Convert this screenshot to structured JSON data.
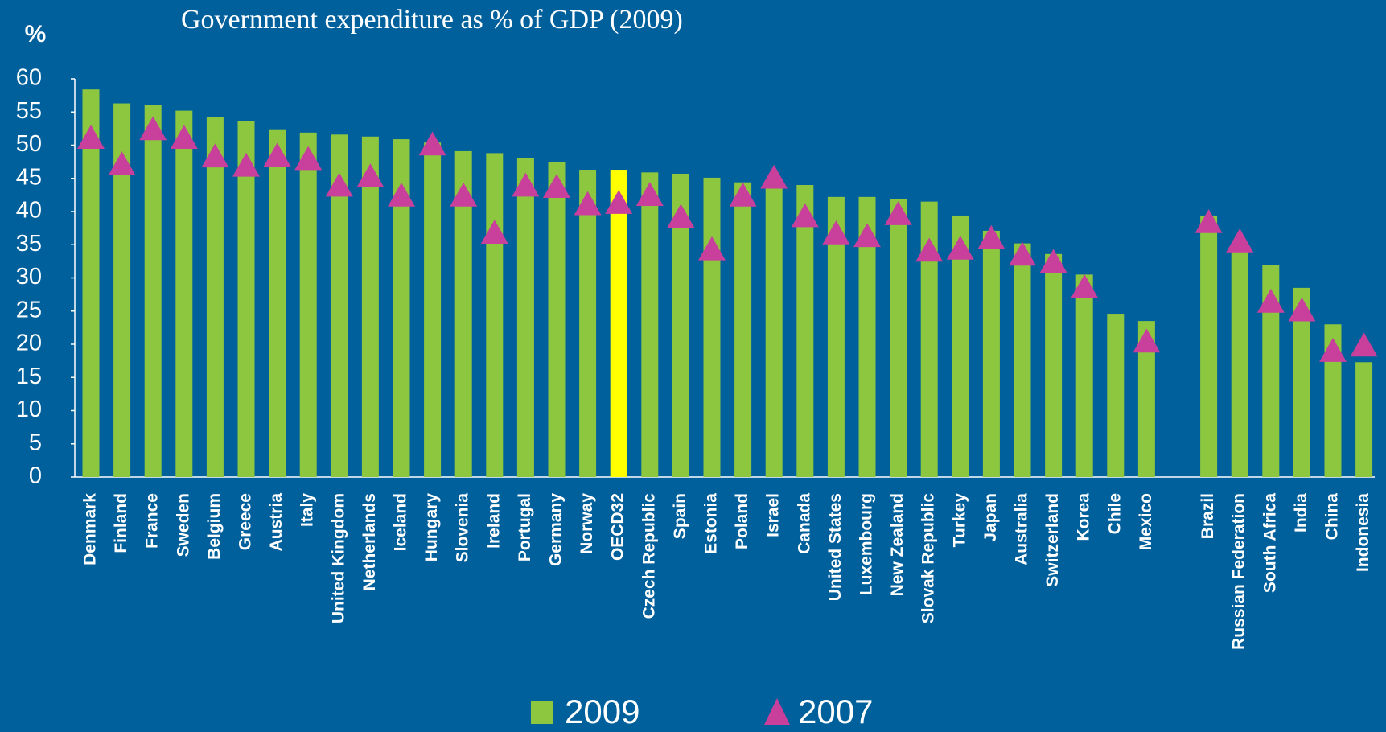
{
  "chart_data": {
    "type": "bar",
    "title": "Government expenditure as % of GDP (2009)",
    "y_label": "%",
    "categories": [
      "Denmark",
      "Finland",
      "France",
      "Sweden",
      "Belgium",
      "Greece",
      "Austria",
      "Italy",
      "United Kingdom",
      "Netherlands",
      "Iceland",
      "Hungary",
      "Slovenia",
      "Ireland",
      "Portugal",
      "Germany",
      "Norway",
      "OECD32",
      "Czech Republic",
      "Spain",
      "Estonia",
      "Poland",
      "Israel",
      "Canada",
      "United States",
      "Luxembourg",
      "New Zealand",
      "Slovak Republic",
      "Turkey",
      "Japan",
      "Australia",
      "Switzerland",
      "Korea",
      "Chile",
      "Mexico",
      null,
      "Brazil",
      "Russian Federation",
      "South Africa",
      "India",
      "China",
      "Indonesia"
    ],
    "series": [
      {
        "name": "2009",
        "marker": "bar",
        "color": "#8dc63f",
        "colors": [
          "#8dc63f",
          "#8dc63f",
          "#8dc63f",
          "#8dc63f",
          "#8dc63f",
          "#8dc63f",
          "#8dc63f",
          "#8dc63f",
          "#8dc63f",
          "#8dc63f",
          "#8dc63f",
          "#8dc63f",
          "#8dc63f",
          "#8dc63f",
          "#8dc63f",
          "#8dc63f",
          "#8dc63f",
          "#ffff00",
          "#8dc63f",
          "#8dc63f",
          "#8dc63f",
          "#8dc63f",
          "#8dc63f",
          "#8dc63f",
          "#8dc63f",
          "#8dc63f",
          "#8dc63f",
          "#8dc63f",
          "#8dc63f",
          "#8dc63f",
          "#8dc63f",
          "#8dc63f",
          "#8dc63f",
          "#8dc63f",
          "#8dc63f",
          null,
          "#8dc63f",
          "#8dc63f",
          "#8dc63f",
          "#8dc63f",
          "#8dc63f",
          "#8dc63f"
        ],
        "values": [
          58.4,
          56.3,
          56,
          55.2,
          54.3,
          53.6,
          52.4,
          51.9,
          51.6,
          51.3,
          50.9,
          50.4,
          49.1,
          48.8,
          48.1,
          47.5,
          46.3,
          46.3,
          45.9,
          45.7,
          45.1,
          44.4,
          43.9,
          44,
          42.2,
          42.2,
          41.9,
          41.5,
          39.4,
          37.1,
          35.2,
          33.6,
          30.5,
          24.6,
          23.5,
          null,
          39.4,
          33.9,
          32,
          28.5,
          23,
          17.3
        ]
      },
      {
        "name": "2007",
        "marker": "triangle",
        "color": "#c8409c",
        "values": [
          51,
          47,
          52.3,
          51,
          48.2,
          46.8,
          48.3,
          47.8,
          43.8,
          45.2,
          42.3,
          50,
          42.3,
          36.7,
          43.8,
          43.6,
          41,
          41.2,
          42.4,
          39.1,
          34.2,
          42.3,
          45,
          39.2,
          36.6,
          36.2,
          39.5,
          34,
          34.3,
          35.9,
          33.4,
          32.3,
          28.5,
          null,
          20.3,
          null,
          38.3,
          35.4,
          26.3,
          25,
          18.9,
          19.7
        ]
      }
    ],
    "ylim": [
      0,
      60
    ],
    "yticks": [
      0,
      5,
      10,
      15,
      20,
      25,
      30,
      35,
      40,
      45,
      50,
      55,
      60
    ]
  }
}
